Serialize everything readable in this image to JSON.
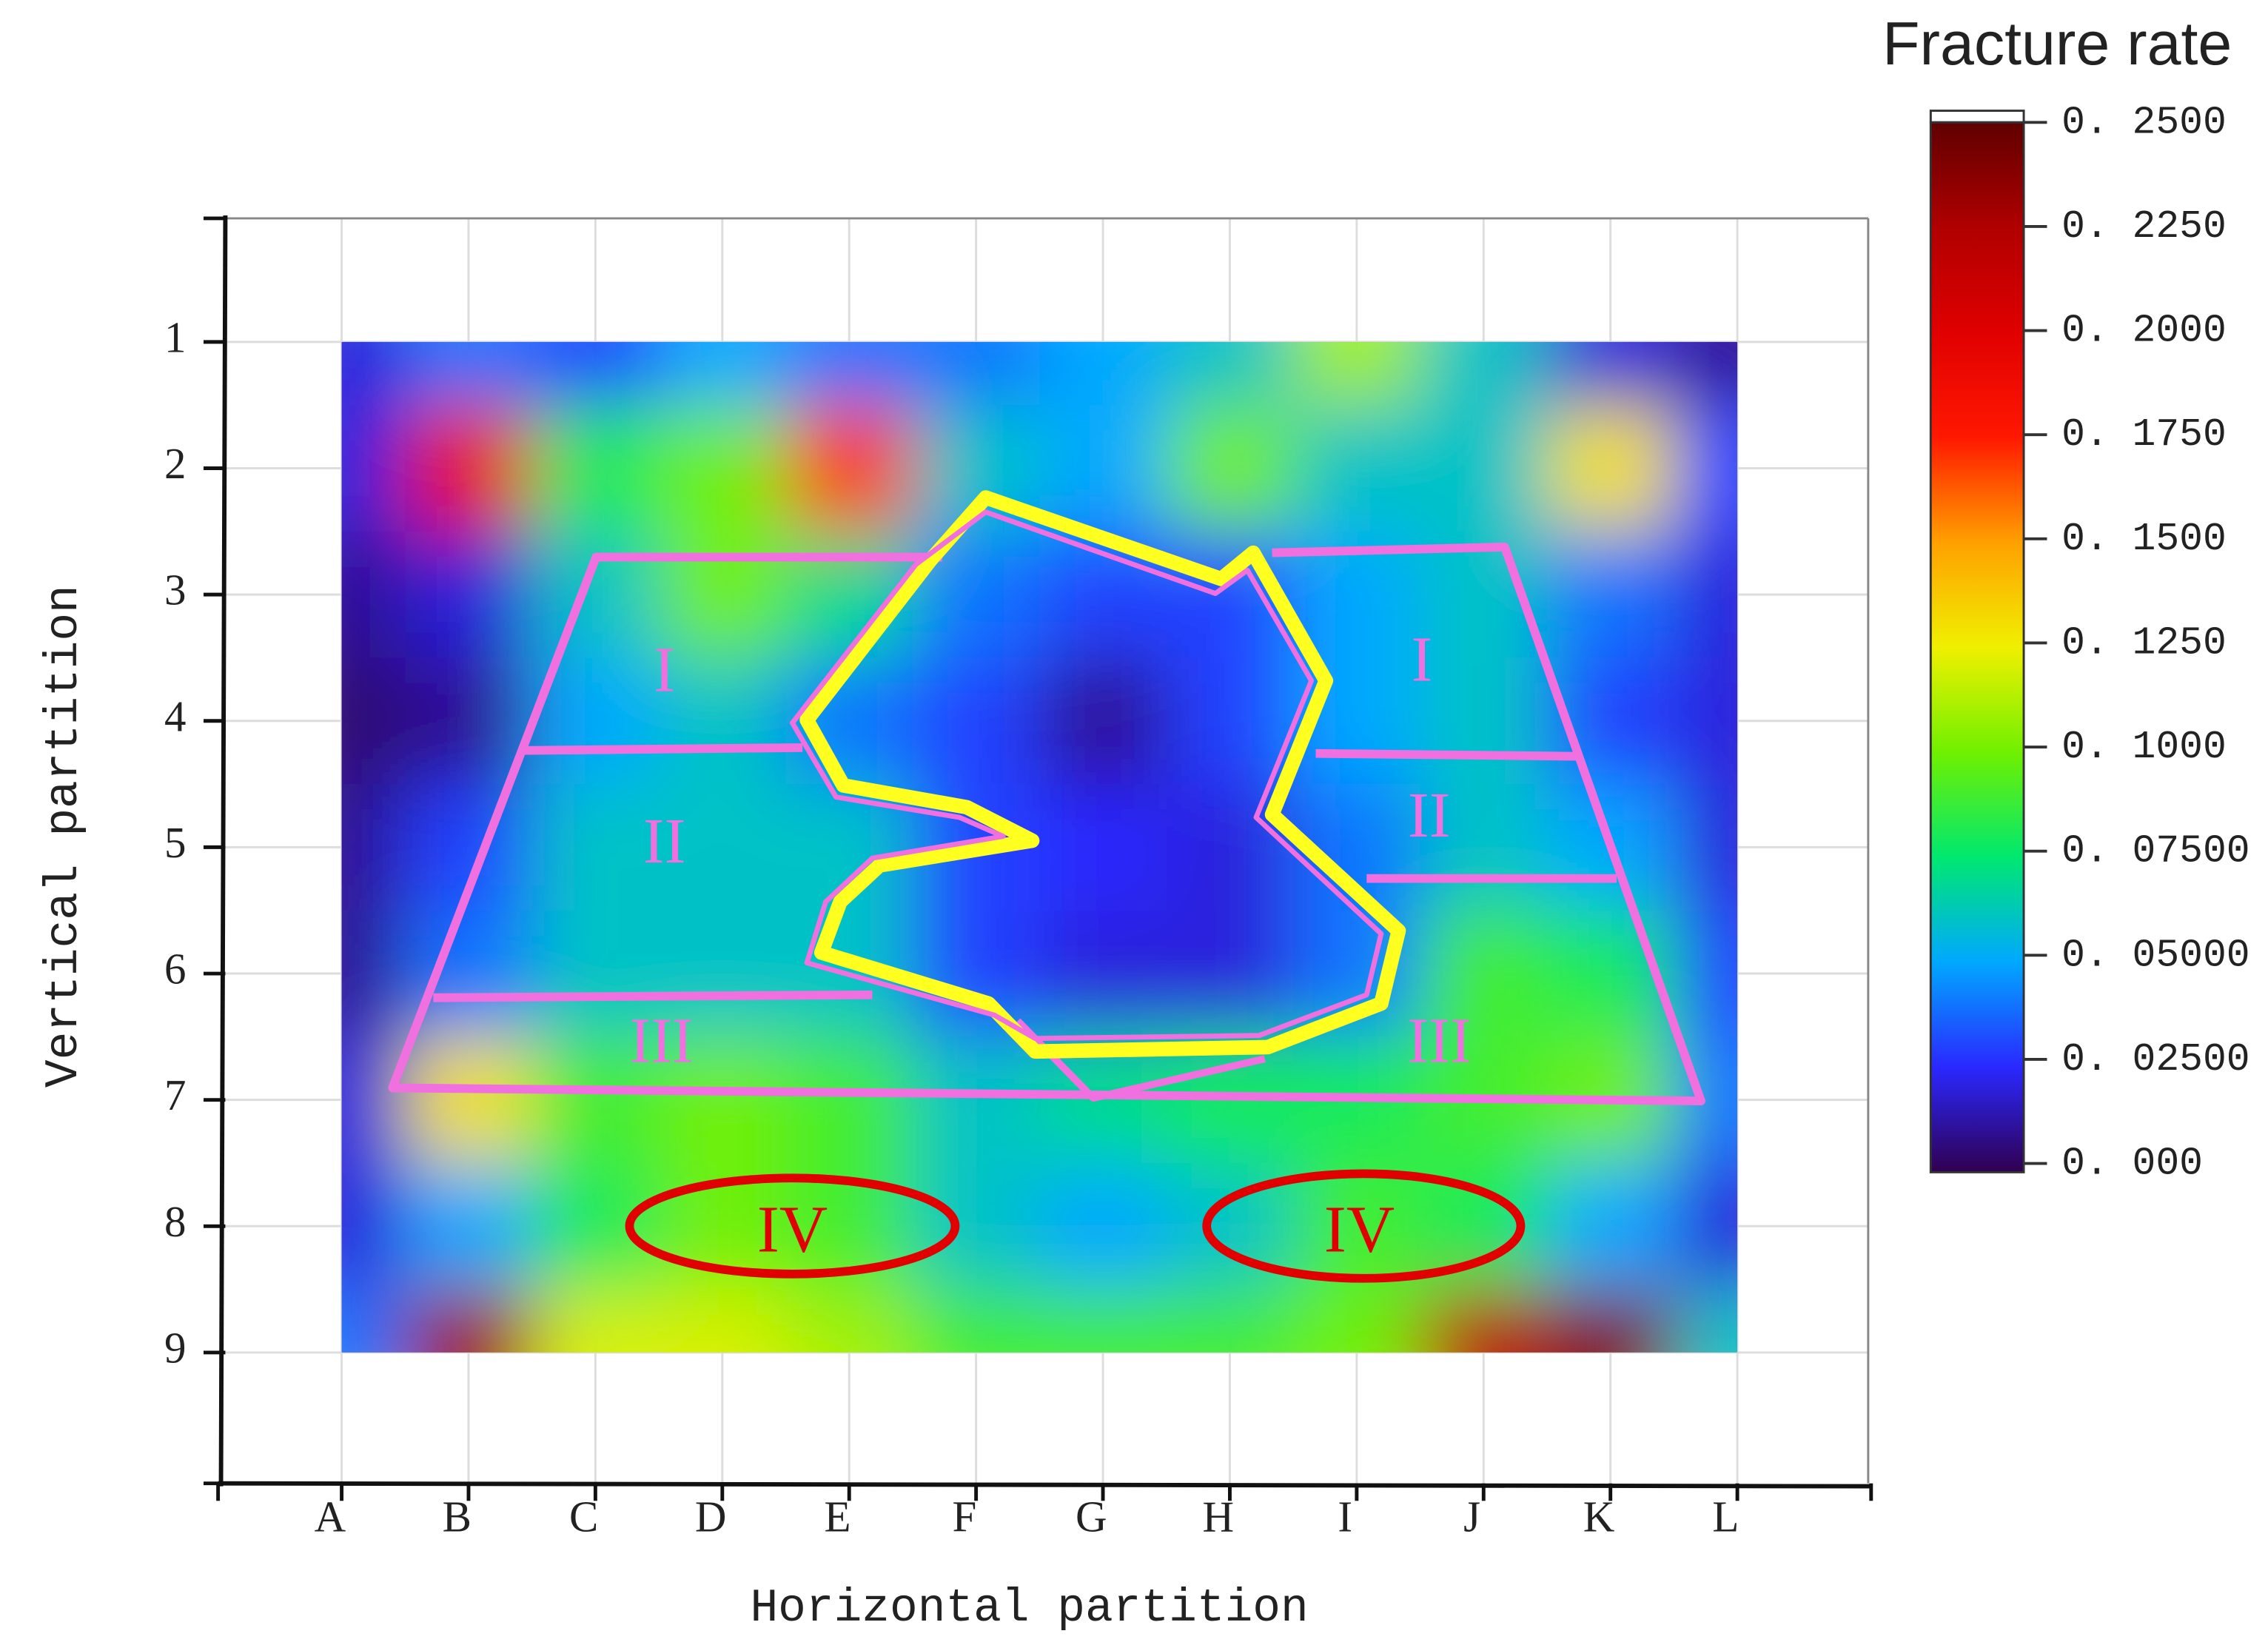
{
  "chart_data": {
    "type": "heatmap",
    "x_label": "Horizontal partition",
    "y_label": "Vertical partition",
    "colorbar_title": "Fracture rate",
    "x_categories": [
      "A",
      "B",
      "C",
      "D",
      "E",
      "F",
      "G",
      "H",
      "I",
      "J",
      "K",
      "L"
    ],
    "y_categories": [
      "1",
      "2",
      "3",
      "4",
      "5",
      "6",
      "7",
      "8",
      "9"
    ],
    "values": [
      [
        0.02,
        0.04,
        0.03,
        0.05,
        0.04,
        0.04,
        0.05,
        0.06,
        0.11,
        0.06,
        0.02,
        0.01
      ],
      [
        0.02,
        0.19,
        0.08,
        0.1,
        0.17,
        0.06,
        0.05,
        0.1,
        0.06,
        0.06,
        0.13,
        0.03
      ],
      [
        0.01,
        0.02,
        0.06,
        0.1,
        0.07,
        0.04,
        0.03,
        0.03,
        0.05,
        0.06,
        0.04,
        0.02
      ],
      [
        0.005,
        0.01,
        0.05,
        0.06,
        0.04,
        0.03,
        0.01,
        0.03,
        0.05,
        0.06,
        0.03,
        0.02
      ],
      [
        0.01,
        0.03,
        0.06,
        0.06,
        0.06,
        0.03,
        0.025,
        0.02,
        0.04,
        0.06,
        0.05,
        0.02
      ],
      [
        0.01,
        0.04,
        0.06,
        0.06,
        0.06,
        0.03,
        0.02,
        0.02,
        0.04,
        0.09,
        0.08,
        0.03
      ],
      [
        0.02,
        0.13,
        0.09,
        0.1,
        0.09,
        0.06,
        0.07,
        0.08,
        0.08,
        0.09,
        0.1,
        0.04
      ],
      [
        0.02,
        0.05,
        0.08,
        0.1,
        0.09,
        0.06,
        0.05,
        0.06,
        0.09,
        0.08,
        0.05,
        0.02
      ],
      [
        0.04,
        0.23,
        0.12,
        0.12,
        0.11,
        0.09,
        0.09,
        0.09,
        0.1,
        0.22,
        0.24,
        0.06
      ]
    ],
    "zlim": [
      0,
      0.25
    ],
    "zticks": [
      {
        "value": 0.25,
        "label": "0. 2500"
      },
      {
        "value": 0.225,
        "label": "0. 2250"
      },
      {
        "value": 0.2,
        "label": "0. 2000"
      },
      {
        "value": 0.175,
        "label": "0. 1750"
      },
      {
        "value": 0.15,
        "label": "0. 1500"
      },
      {
        "value": 0.125,
        "label": "0. 1250"
      },
      {
        "value": 0.1,
        "label": "0. 1000"
      },
      {
        "value": 0.075,
        "label": "0. 07500"
      },
      {
        "value": 0.05,
        "label": "0. 05000"
      },
      {
        "value": 0.025,
        "label": "0. 02500"
      },
      {
        "value": 0,
        "label": "0. 000"
      }
    ],
    "colormap": [
      "#300050",
      "#2a28ff",
      "#00a8ff",
      "#00e870",
      "#70f000",
      "#f0f000",
      "#ffa000",
      "#ff1800",
      "#e00000",
      "#b00000",
      "#600000"
    ],
    "grid": true,
    "annotations": [
      "I",
      "II",
      "III",
      "I",
      "II",
      "III",
      "IV",
      "IV"
    ]
  }
}
